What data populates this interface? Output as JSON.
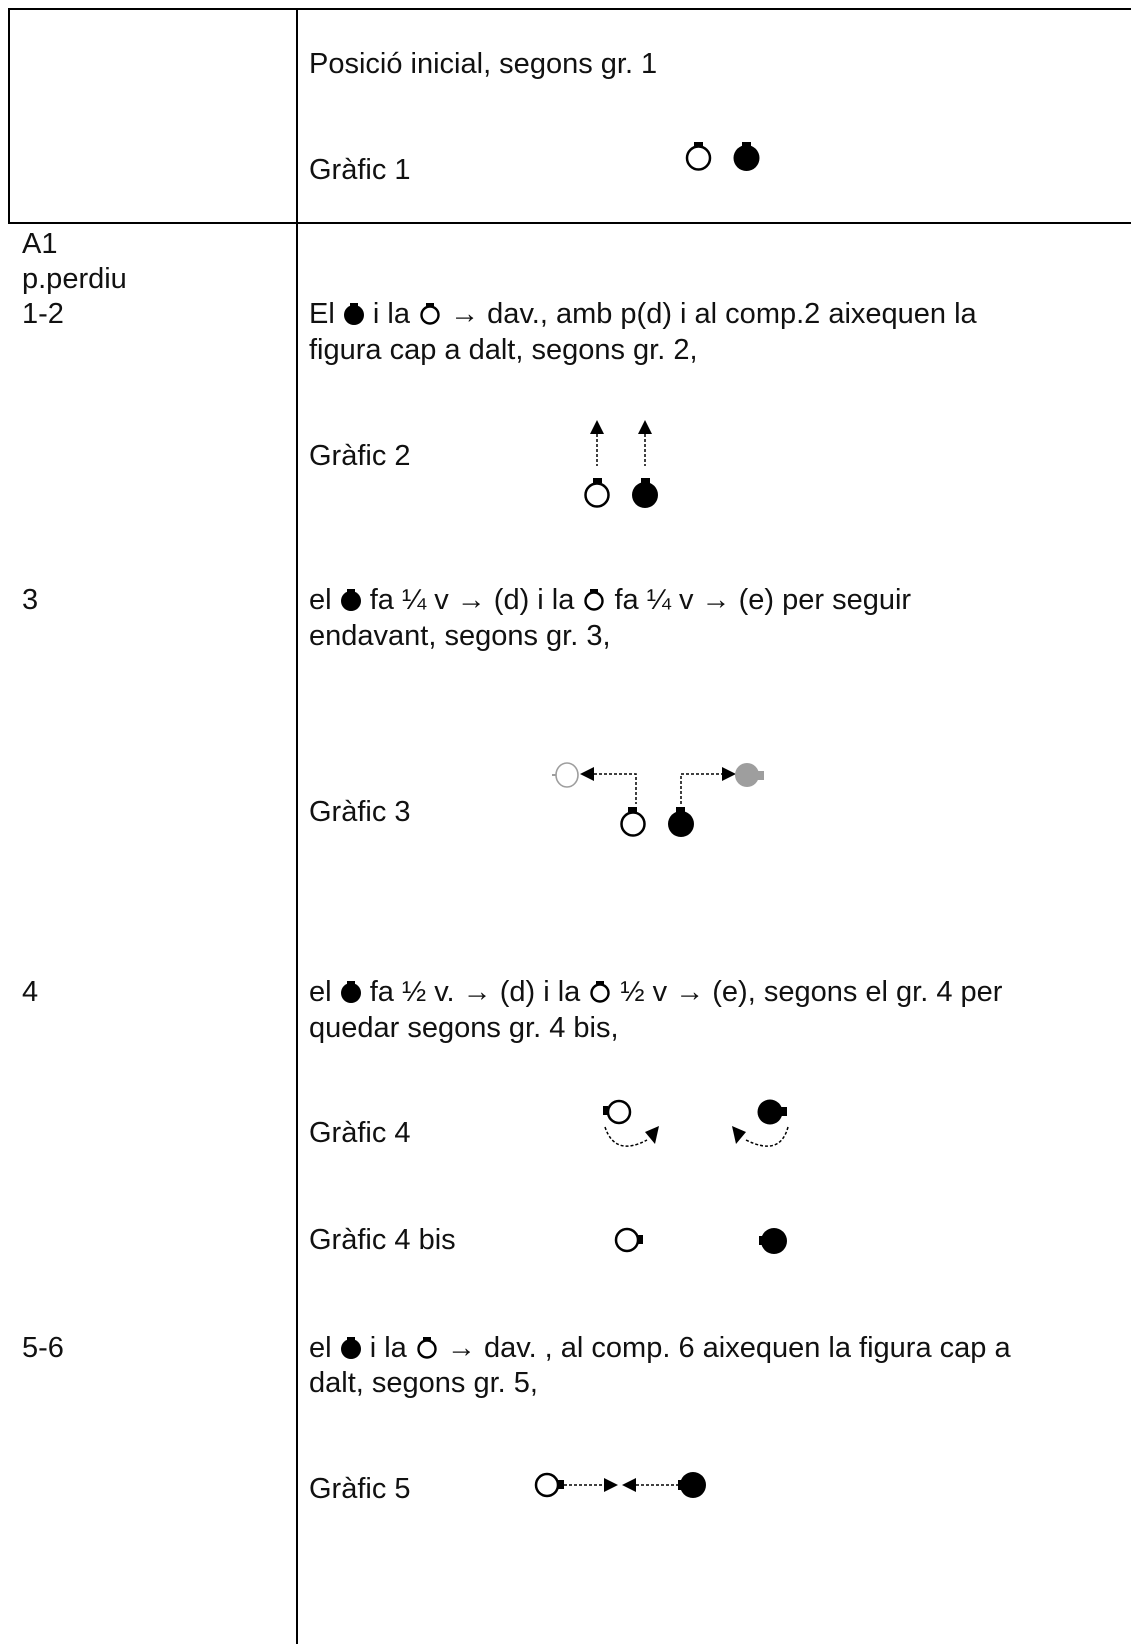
{
  "rows": [
    {
      "cells": [],
      "paragraphs": [
        {
          "text": "Posició inicial, segons gr. 1"
        }
      ],
      "graphics": [
        {
          "label": "Gràfic 1"
        }
      ]
    },
    {
      "cells": [
        "A1",
        "p.perdiu",
        "1-2",
        "3",
        "4",
        "5-6"
      ],
      "paragraphs": [
        {
          "parts": [
            "El",
            "i la",
            "→ dav., amb p(d) i  al comp.2 aixequen la"
          ],
          "line2": "figura cap a dalt, segons gr. 2,"
        },
        {
          "parts": [
            "el",
            "fa ¼ v → (d) i la",
            "fa ¼ v  → (e) per seguir"
          ],
          "line2": "endavant, segons gr. 3,"
        },
        {
          "parts": [
            "el",
            "fa ½ v. → (d) i la",
            "½ v → (e), segons el gr. 4 per"
          ],
          "line2": "quedar segons gr. 4 bis,"
        },
        {
          "parts": [
            "el",
            "i la",
            "→ dav. , al comp. 6 aixequen la figura cap a"
          ],
          "line2": "dalt, segons gr. 5,"
        }
      ],
      "graphics": [
        {
          "label": "Gràfic 2"
        },
        {
          "label": "Gràfic  3"
        },
        {
          "label": "Gràfic 4"
        },
        {
          "label": "Gràfic 4 bis"
        },
        {
          "label": "Gràfic 5"
        }
      ]
    }
  ],
  "icons": {
    "dancer_white": "white-circle-dancer",
    "dancer_black": "black-circle-dancer",
    "faded_color": "#9e9e9e"
  }
}
